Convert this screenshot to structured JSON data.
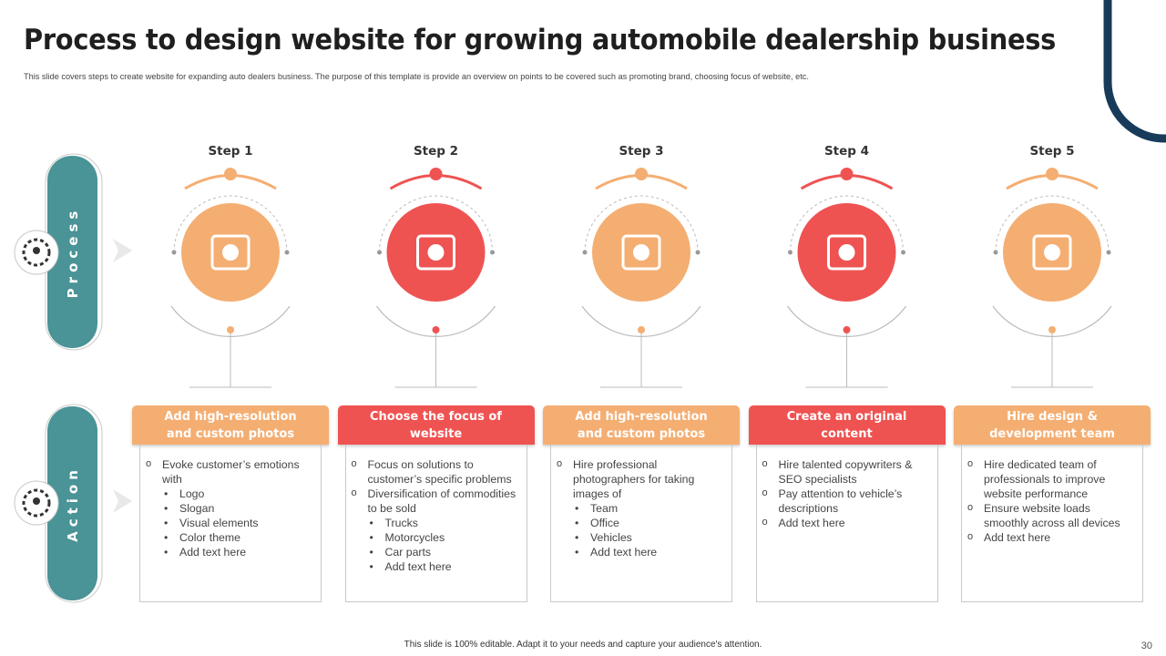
{
  "header": {
    "title": "Process to design website for growing automobile dealership business",
    "subtitle": "This slide covers steps to create website for expanding auto dealers business. The purpose of this template is provide an overview on points to be covered such as promoting brand, choosing focus of website, etc."
  },
  "rows": [
    "Process",
    "Action"
  ],
  "steps": [
    {
      "label": "Step 1",
      "heading": "Add high-resolution and custom photos",
      "items": [
        {
          "text": "Evoke customer’s emotions with",
          "sub": [
            "Logo",
            "Slogan",
            "Visual elements",
            "Color theme",
            "Add text here"
          ]
        }
      ]
    },
    {
      "label": "Step 2",
      "heading": "Choose the focus of website",
      "items": [
        {
          "text": "Focus on solutions to customer’s specific problems"
        },
        {
          "text": "Diversification of commodities to be sold",
          "sub": [
            "Trucks",
            "Motorcycles",
            "Car parts",
            "Add text here"
          ]
        }
      ]
    },
    {
      "label": "Step 3",
      "heading": "Add high-resolution and custom photos",
      "items": [
        {
          "text": "Hire professional photographers for taking images of",
          "sub": [
            "Team",
            "Office",
            "Vehicles",
            "Add text here"
          ]
        }
      ]
    },
    {
      "label": "Step 4",
      "heading": "Create an original content",
      "items": [
        {
          "text": "Hire talented copywriters & SEO specialists"
        },
        {
          "text": "Pay attention to vehicle’s descriptions"
        },
        {
          "text": "Add text here"
        }
      ]
    },
    {
      "label": "Step 5",
      "heading": "Hire design & development team",
      "items": [
        {
          "text": "Hire dedicated team of professionals to improve website performance"
        },
        {
          "text": "Ensure website loads smoothly across all devices"
        },
        {
          "text": "Add text here"
        }
      ]
    }
  ],
  "footer": {
    "note": "This slide is 100% editable. Adapt it to your needs and capture your audience's attention.",
    "page": "30"
  }
}
